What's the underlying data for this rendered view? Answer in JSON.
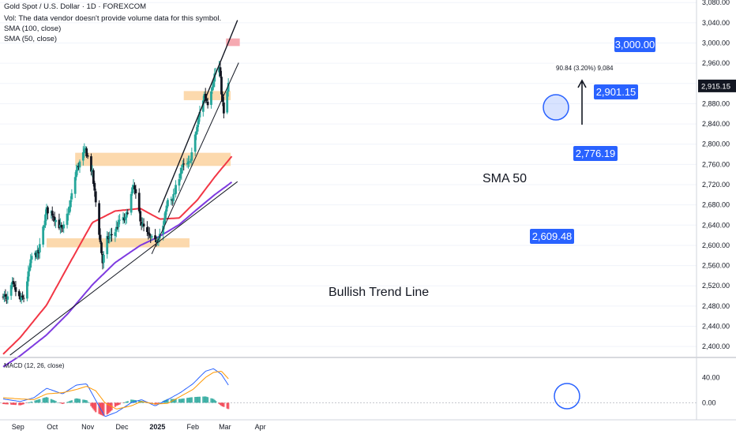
{
  "header": {
    "symbol_line": "Gold Spot / U.S. Dollar · 1D · FOREXCOM",
    "volume_note": "Vol: The data vendor doesn't provide volume data for this symbol.",
    "sma100_label": "SMA (100, close)",
    "sma50_label": "SMA (50, close)"
  },
  "colors": {
    "up": "#26a69a",
    "down": "#131722",
    "sma50": "#f23645",
    "sma100": "#7e3ae0",
    "zone": "#fcd29f",
    "resistance_zone": "#f59aa3",
    "label_bg": "#2962ff",
    "macd_line": "#2962ff",
    "signal_line": "#ff9800",
    "hist_up": "#26a69a",
    "hist_down": "#f23645"
  },
  "chart_data": {
    "type": "candlestick",
    "ylim": [
      2380,
      3085
    ],
    "y_ticks": [
      "2,400.00",
      "2,440.00",
      "2,480.00",
      "2,520.00",
      "2,560.00",
      "2,600.00",
      "2,640.00",
      "2,680.00",
      "2,720.00",
      "2,760.00",
      "2,800.00",
      "2,840.00",
      "2,880.00",
      "2,920.00",
      "2,960.00",
      "3,000.00",
      "3,040.00",
      "3,080.00"
    ],
    "x_ticks": [
      "Sep",
      "Oct",
      "Nov",
      "Dec",
      "2025",
      "Feb",
      "Mar",
      "Apr"
    ],
    "current_price_label": "2,915.15",
    "price_labels": [
      "3,000.00",
      "2,901.15",
      "2,776.19",
      "2,609.48"
    ],
    "annotations": {
      "trend_line": "Bullish Trend Line",
      "sma": "SMA 50",
      "measure": "90.84 (3.20%) 9,084"
    },
    "anchors": [
      [
        "2024-08-19",
        2505
      ],
      [
        "2024-08-22",
        2490
      ],
      [
        "2024-08-27",
        2522
      ],
      [
        "2024-09-03",
        2492
      ],
      [
        "2024-09-06",
        2496
      ],
      [
        "2024-09-13",
        2578
      ],
      [
        "2024-09-19",
        2585
      ],
      [
        "2024-09-26",
        2670
      ],
      [
        "2024-10-01",
        2663
      ],
      [
        "2024-10-04",
        2650
      ],
      [
        "2024-10-10",
        2628
      ],
      [
        "2024-10-16",
        2675
      ],
      [
        "2024-10-22",
        2748
      ],
      [
        "2024-10-30",
        2790
      ],
      [
        "2024-11-05",
        2742
      ],
      [
        "2024-11-08",
        2685
      ],
      [
        "2024-11-14",
        2566
      ],
      [
        "2024-11-18",
        2612
      ],
      [
        "2024-11-25",
        2628
      ],
      [
        "2024-11-29",
        2650
      ],
      [
        "2024-12-04",
        2651
      ],
      [
        "2024-12-11",
        2718
      ],
      [
        "2024-12-18",
        2643
      ],
      [
        "2024-12-24",
        2618
      ],
      [
        "2024-12-30",
        2606
      ],
      [
        "2025-01-06",
        2636
      ],
      [
        "2025-01-10",
        2690
      ],
      [
        "2025-01-15",
        2696
      ],
      [
        "2025-01-22",
        2754
      ],
      [
        "2025-01-29",
        2762
      ],
      [
        "2025-02-03",
        2814
      ],
      [
        "2025-02-07",
        2862
      ],
      [
        "2025-02-11",
        2898
      ],
      [
        "2025-02-14",
        2882
      ],
      [
        "2025-02-20",
        2938
      ],
      [
        "2025-02-24",
        2951
      ],
      [
        "2025-02-28",
        2857
      ],
      [
        "2025-03-04",
        2918
      ]
    ],
    "sma50": [
      [
        "2024-08-19",
        2385
      ],
      [
        "2024-09-03",
        2418
      ],
      [
        "2024-09-26",
        2482
      ],
      [
        "2024-10-15",
        2560
      ],
      [
        "2024-11-05",
        2645
      ],
      [
        "2024-11-25",
        2668
      ],
      [
        "2024-12-17",
        2673
      ],
      [
        "2025-01-03",
        2652
      ],
      [
        "2025-01-20",
        2654
      ],
      [
        "2025-02-05",
        2690
      ],
      [
        "2025-02-20",
        2735
      ],
      [
        "2025-03-07",
        2776
      ]
    ],
    "sma100": [
      [
        "2024-08-19",
        2360
      ],
      [
        "2024-09-03",
        2382
      ],
      [
        "2024-09-26",
        2423
      ],
      [
        "2024-10-15",
        2466
      ],
      [
        "2024-11-05",
        2522
      ],
      [
        "2024-11-25",
        2566
      ],
      [
        "2024-12-17",
        2600
      ],
      [
        "2025-01-03",
        2618
      ],
      [
        "2025-01-20",
        2641
      ],
      [
        "2025-02-05",
        2672
      ],
      [
        "2025-02-20",
        2700
      ],
      [
        "2025-03-07",
        2725
      ]
    ],
    "zones": [
      {
        "from": "2025-01-24",
        "to": "2025-03-06",
        "low": 2887,
        "high": 2905
      },
      {
        "from": "2024-10-21",
        "to": "2025-03-06",
        "low": 2757,
        "high": 2783
      },
      {
        "from": "2024-09-26",
        "to": "2025-01-29",
        "low": 2596,
        "high": 2614
      }
    ],
    "resistance_zone": {
      "from": "2025-03-02",
      "to": "2025-03-14",
      "low": 2994,
      "high": 3009
    },
    "lines": [
      {
        "name": "bullish-trend-line",
        "from": [
          "2024-08-25",
          2383
        ],
        "to": [
          "2025-03-12",
          2726
        ]
      },
      {
        "name": "channel-upper",
        "from": [
          "2025-01-02",
          2665
        ],
        "to": [
          "2025-03-12",
          3045
        ]
      },
      {
        "name": "channel-lower",
        "from": [
          "2024-12-27",
          2583
        ],
        "to": [
          "2025-03-13",
          2961
        ]
      }
    ],
    "macd": {
      "label": "MACD (12, 26, close)",
      "ylim": [
        -27,
        68
      ],
      "y_ticks": [
        "40.00",
        "0.00"
      ],
      "macd": [
        [
          "2024-08-19",
          6
        ],
        [
          "2024-09-03",
          2
        ],
        [
          "2024-09-15",
          8
        ],
        [
          "2024-09-26",
          23
        ],
        [
          "2024-10-10",
          14
        ],
        [
          "2024-10-22",
          28
        ],
        [
          "2024-10-31",
          30
        ],
        [
          "2024-11-08",
          4
        ],
        [
          "2024-11-16",
          -22
        ],
        [
          "2024-11-26",
          -15
        ],
        [
          "2024-12-09",
          0
        ],
        [
          "2024-12-18",
          5
        ],
        [
          "2024-12-30",
          -5
        ],
        [
          "2025-01-10",
          5
        ],
        [
          "2025-01-21",
          16
        ],
        [
          "2025-02-01",
          30
        ],
        [
          "2025-02-12",
          50
        ],
        [
          "2025-02-19",
          54
        ],
        [
          "2025-02-26",
          45
        ],
        [
          "2025-03-04",
          28
        ]
      ],
      "signal": [
        [
          "2024-08-19",
          8
        ],
        [
          "2024-09-03",
          6
        ],
        [
          "2024-09-15",
          5
        ],
        [
          "2024-09-26",
          14
        ],
        [
          "2024-10-10",
          16
        ],
        [
          "2024-10-22",
          21
        ],
        [
          "2024-10-31",
          26
        ],
        [
          "2024-11-08",
          19
        ],
        [
          "2024-11-16",
          0
        ],
        [
          "2024-11-26",
          -10
        ],
        [
          "2024-12-09",
          -5
        ],
        [
          "2024-12-18",
          2
        ],
        [
          "2024-12-30",
          -2
        ],
        [
          "2025-01-10",
          -1
        ],
        [
          "2025-01-21",
          10
        ],
        [
          "2025-02-01",
          21
        ],
        [
          "2025-02-12",
          40
        ],
        [
          "2025-02-19",
          48
        ],
        [
          "2025-02-26",
          50
        ],
        [
          "2025-03-04",
          38
        ]
      ]
    }
  }
}
